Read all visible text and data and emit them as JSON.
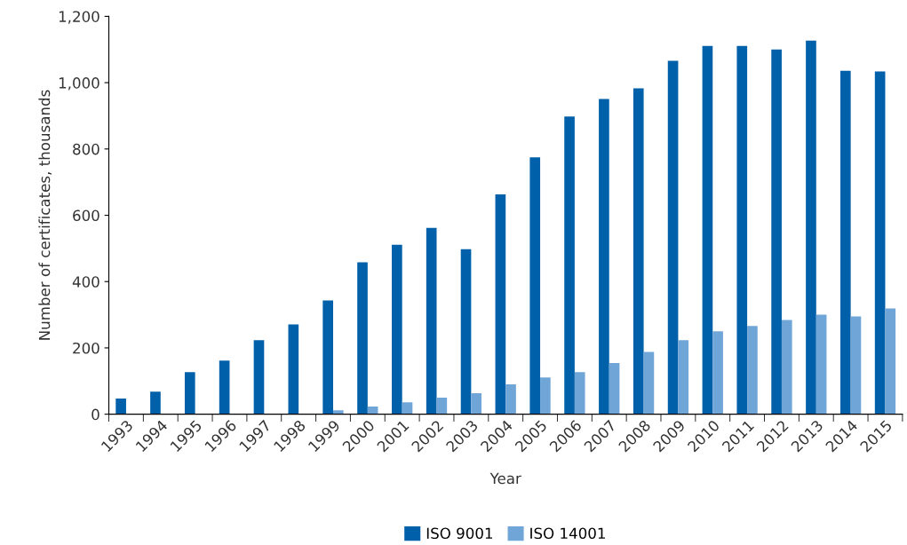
{
  "chart_data": {
    "type": "bar",
    "xlabel": "Year",
    "ylabel": "Number of certificates, thousands",
    "categories": [
      "1993",
      "1994",
      "1995",
      "1996",
      "1997",
      "1998",
      "1999",
      "2000",
      "2001",
      "2002",
      "2003",
      "2004",
      "2005",
      "2006",
      "2007",
      "2008",
      "2009",
      "2010",
      "2011",
      "2012",
      "2013",
      "2014",
      "2015"
    ],
    "series": [
      {
        "name": "ISO 9001",
        "color": "#0060aa",
        "values": [
          47,
          68,
          127,
          162,
          223,
          271,
          343,
          458,
          511,
          562,
          498,
          663,
          775,
          898,
          951,
          983,
          1066,
          1111,
          1111,
          1100,
          1127,
          1036,
          1034
        ]
      },
      {
        "name": "ISO 14001",
        "color": "#70a5d8",
        "values": [
          null,
          null,
          null,
          null,
          null,
          null,
          12,
          23,
          36,
          50,
          63,
          90,
          111,
          127,
          154,
          188,
          223,
          250,
          266,
          284,
          300,
          295,
          319
        ]
      }
    ],
    "ylim": [
      0,
      1200
    ],
    "yticks": [
      0,
      200,
      400,
      600,
      800,
      {
        "value": 1000,
        "label": "1,000"
      },
      {
        "value": 1200,
        "label": "1,200"
      }
    ],
    "grid": false,
    "legend": "bottom"
  }
}
